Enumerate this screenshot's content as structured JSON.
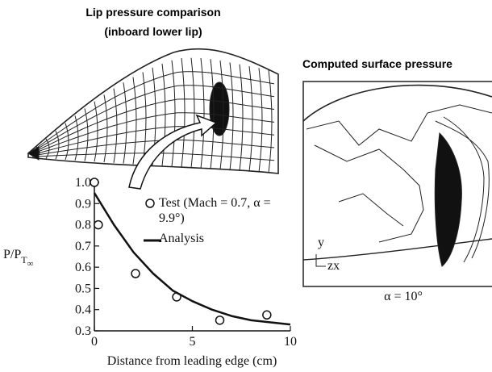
{
  "chart_data": {
    "type": "line",
    "title": "Lip pressure comparison",
    "subtitle": "(inboard lower lip)",
    "xlabel": "Distance from leading edge (cm)",
    "ylabel": "P/P",
    "ylabel_sub": "T",
    "ylabel_subsub": "∞",
    "xlim": [
      0,
      10
    ],
    "xticks": [
      0,
      5,
      10
    ],
    "ylim": [
      0.3,
      1.0
    ],
    "yticks": [
      {
        "value": 1.0,
        "label": "1.0"
      },
      0.9,
      0.8,
      0.7,
      0.6,
      0.5,
      0.4,
      0.3
    ],
    "series": [
      {
        "name": "Test (Mach = 0.7, α = 9.9°)",
        "style": "markers",
        "color": "#111111",
        "x": [
          0,
          0.2,
          2.1,
          4.2,
          6.4,
          8.8
        ],
        "values": [
          1.0,
          0.8,
          0.57,
          0.46,
          0.35,
          0.375
        ]
      },
      {
        "name": "Analysis",
        "style": "line",
        "color": "#111111",
        "x": [
          0,
          1,
          2,
          3,
          4,
          5,
          6,
          7,
          8,
          9,
          10
        ],
        "values": [
          0.95,
          0.8,
          0.67,
          0.57,
          0.49,
          0.44,
          0.4,
          0.37,
          0.35,
          0.34,
          0.33
        ]
      }
    ]
  },
  "panel": {
    "title": "Computed surface pressure",
    "caption": "α = 10°",
    "axis_y": "y",
    "axis_zx": "zx"
  }
}
